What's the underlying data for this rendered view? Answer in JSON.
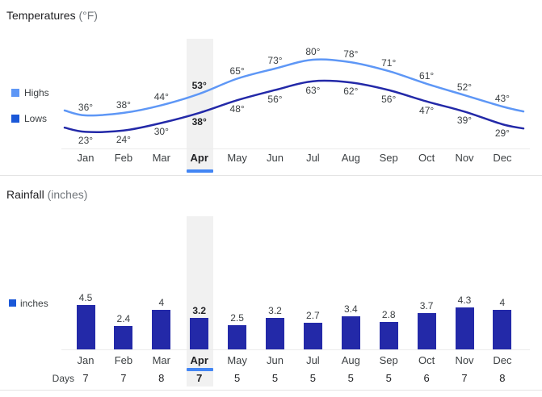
{
  "temperature_section": {
    "title": "Temperatures",
    "title_unit": "(°F)",
    "legend": {
      "highs_label": "Highs",
      "lows_label": "Lows"
    }
  },
  "rainfall_section": {
    "title": "Rainfall",
    "title_unit": "(inches)",
    "legend": {
      "inches_label": "inches"
    },
    "days_label": "Days"
  },
  "chart_data": [
    {
      "type": "line",
      "title": "Temperatures (°F)",
      "categories": [
        "Jan",
        "Feb",
        "Mar",
        "Apr",
        "May",
        "Jun",
        "Jul",
        "Aug",
        "Sep",
        "Oct",
        "Nov",
        "Dec"
      ],
      "series": [
        {
          "name": "Highs",
          "values": [
            36,
            38,
            44,
            53,
            65,
            73,
            80,
            78,
            71,
            61,
            52,
            43
          ],
          "color": "#5e97f6"
        },
        {
          "name": "Lows",
          "values": [
            23,
            24,
            30,
            38,
            48,
            56,
            63,
            62,
            56,
            47,
            39,
            29
          ],
          "color": "#2329a8"
        }
      ],
      "unit": "°",
      "value_range": [
        23,
        80
      ],
      "highlighted_category": "Apr",
      "legend_position": "left",
      "grid": false
    },
    {
      "type": "bar",
      "title": "Rainfall (inches)",
      "categories": [
        "Jan",
        "Feb",
        "Mar",
        "Apr",
        "May",
        "Jun",
        "Jul",
        "Aug",
        "Sep",
        "Oct",
        "Nov",
        "Dec"
      ],
      "values": [
        4.5,
        2.4,
        4,
        3.2,
        2.5,
        3.2,
        2.7,
        3.4,
        2.8,
        3.7,
        4.3,
        4
      ],
      "ylabel": "inches",
      "highlighted_category": "Apr",
      "legend_position": "left",
      "grid": false,
      "extra_row": {
        "label": "Days",
        "values": [
          7,
          7,
          8,
          7,
          5,
          5,
          5,
          5,
          5,
          6,
          7,
          8
        ]
      }
    }
  ],
  "colors": {
    "highs_line": "#5e97f6",
    "lows_line": "#2329a8",
    "bar": "#2329a8",
    "legend_highs_swatch": "#5e97f6",
    "legend_lows_swatch": "#1b58d8",
    "legend_inches_swatch": "#1b58d8",
    "highlight_band": "#f1f1f1",
    "selected_underline": "#4285f4"
  }
}
